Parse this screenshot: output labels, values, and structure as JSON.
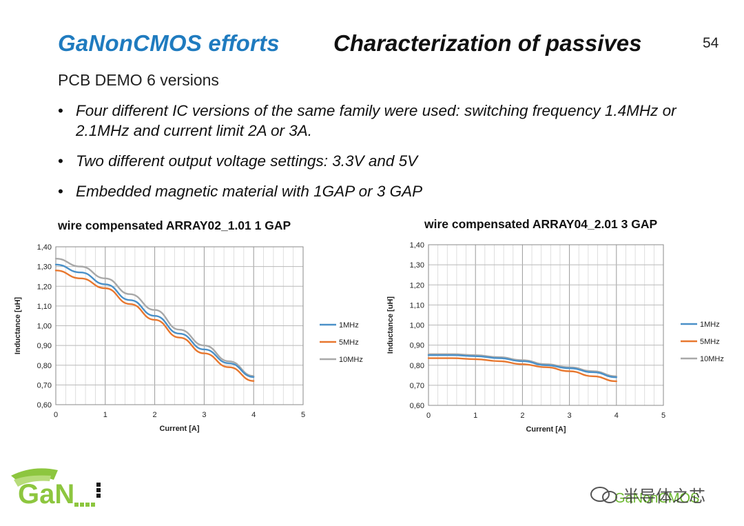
{
  "header": {
    "project": "GaNonCMOS efforts",
    "title": "Characterization of passives",
    "page_number": "54"
  },
  "subtitle": "PCB DEMO 6 versions",
  "bullets": [
    "Four different IC versions of the same family were used: switching frequency 1.4MHz or 2.1MHz and current limit 2A or 3A.",
    "Two different output voltage settings: 3.3V and 5V",
    "Embedded magnetic material with 1GAP or 3 GAP"
  ],
  "footer": {
    "logo_text": "GaN",
    "brand": "GaNonCMOS",
    "watermark": "半导体之芯"
  },
  "colors": {
    "header_blue": "#1f7bbf",
    "series_1MHz": "#4a90c8",
    "series_5MHz": "#e8772e",
    "series_10MHz": "#a8a8a8",
    "logo_green": "#8dc63f"
  },
  "chart_data": [
    {
      "type": "line",
      "title": "wire compensated ARRAY02_1.01   1 GAP",
      "xlabel": "Current [A]",
      "ylabel": "Inductance [uH]",
      "xlim": [
        0,
        5
      ],
      "ylim": [
        0.6,
        1.4
      ],
      "x_ticks": [
        "0",
        "1",
        "2",
        "3",
        "4",
        "5"
      ],
      "y_ticks": [
        "0,60",
        "0,70",
        "0,80",
        "0,90",
        "1,00",
        "1,10",
        "1,20",
        "1,30",
        "1,40"
      ],
      "grid": true,
      "legend": "right",
      "x": [
        0,
        0.5,
        1,
        1.5,
        2,
        2.5,
        3,
        3.5,
        4
      ],
      "series": [
        {
          "name": "1MHz",
          "values": [
            1.31,
            1.27,
            1.21,
            1.13,
            1.05,
            0.96,
            0.88,
            0.81,
            0.74
          ]
        },
        {
          "name": "5MHz",
          "values": [
            1.28,
            1.24,
            1.19,
            1.11,
            1.03,
            0.94,
            0.86,
            0.79,
            0.72
          ]
        },
        {
          "name": "10MHz",
          "values": [
            1.34,
            1.3,
            1.24,
            1.16,
            1.08,
            0.98,
            0.9,
            0.82,
            0.745
          ]
        }
      ]
    },
    {
      "type": "line",
      "title": "wire compensated ARRAY04_2.01   3 GAP",
      "xlabel": "Current [A]",
      "ylabel": "Inductance [uH]",
      "xlim": [
        0,
        5
      ],
      "ylim": [
        0.6,
        1.4
      ],
      "x_ticks": [
        "0",
        "1",
        "2",
        "3",
        "4",
        "5"
      ],
      "y_ticks": [
        "0,60",
        "0,70",
        "0,80",
        "0,90",
        "1,00",
        "1,10",
        "1,20",
        "1,30",
        "1,40"
      ],
      "grid": true,
      "legend": "right",
      "x": [
        0,
        0.5,
        1,
        1.5,
        2,
        2.5,
        3,
        3.5,
        4
      ],
      "series": [
        {
          "name": "1MHz",
          "values": [
            0.85,
            0.85,
            0.845,
            0.835,
            0.82,
            0.8,
            0.785,
            0.765,
            0.74
          ]
        },
        {
          "name": "5MHz",
          "values": [
            0.835,
            0.835,
            0.83,
            0.82,
            0.805,
            0.79,
            0.77,
            0.745,
            0.72
          ]
        },
        {
          "name": "10MHz",
          "values": [
            0.855,
            0.855,
            0.85,
            0.84,
            0.825,
            0.805,
            0.79,
            0.77,
            0.745
          ]
        }
      ]
    }
  ]
}
